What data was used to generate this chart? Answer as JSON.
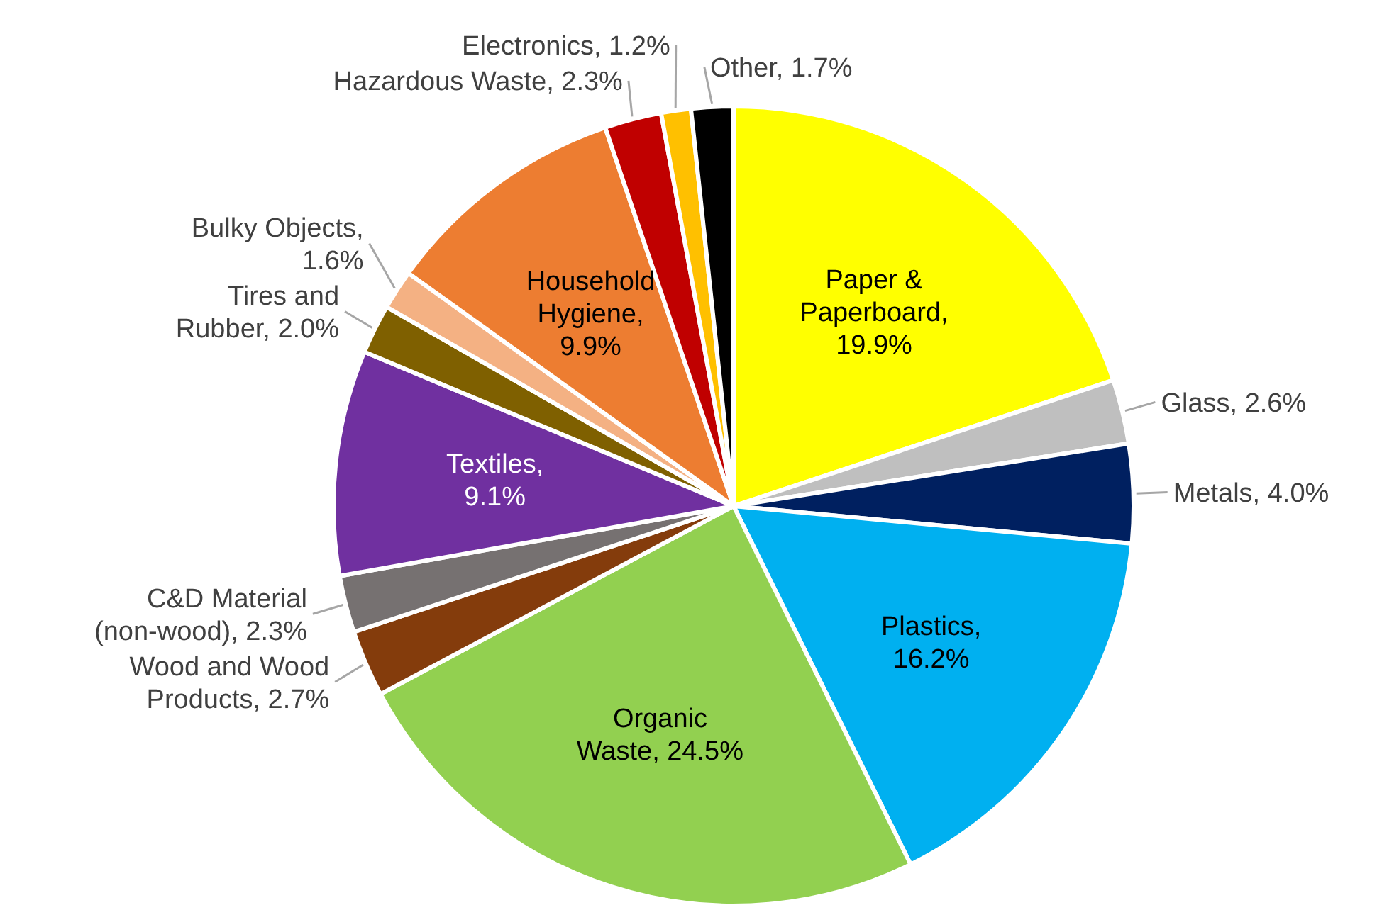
{
  "chart_data": {
    "type": "pie",
    "categories": [
      "Paper & Paperboard, 19.9%",
      "Glass, 2.6%",
      "Metals, 4.0%",
      "Plastics, 16.2%",
      "Organic Waste, 24.5%",
      "Wood and Wood Products, 2.7%",
      "C&D Material (non-wood), 2.3%",
      "Textiles, 9.1%",
      "Tires and Rubber, 2.0%",
      "Bulky Objects, 1.6%",
      "Household Hygiene, 9.9%",
      "Hazardous Waste, 2.3%",
      "Electronics, 1.2%",
      "Other, 1.7%"
    ],
    "values": [
      19.9,
      2.6,
      4.0,
      16.2,
      24.5,
      2.7,
      2.3,
      9.1,
      2.0,
      1.6,
      9.9,
      2.3,
      1.2,
      1.7
    ],
    "colors": [
      "#ffff00",
      "#bfbfbf",
      "#002060",
      "#00b0f0",
      "#92d050",
      "#843c0c",
      "#767171",
      "#7030a0",
      "#7f6000",
      "#f4b183",
      "#ed7d31",
      "#c00000",
      "#ffc000",
      "#000000"
    ]
  }
}
